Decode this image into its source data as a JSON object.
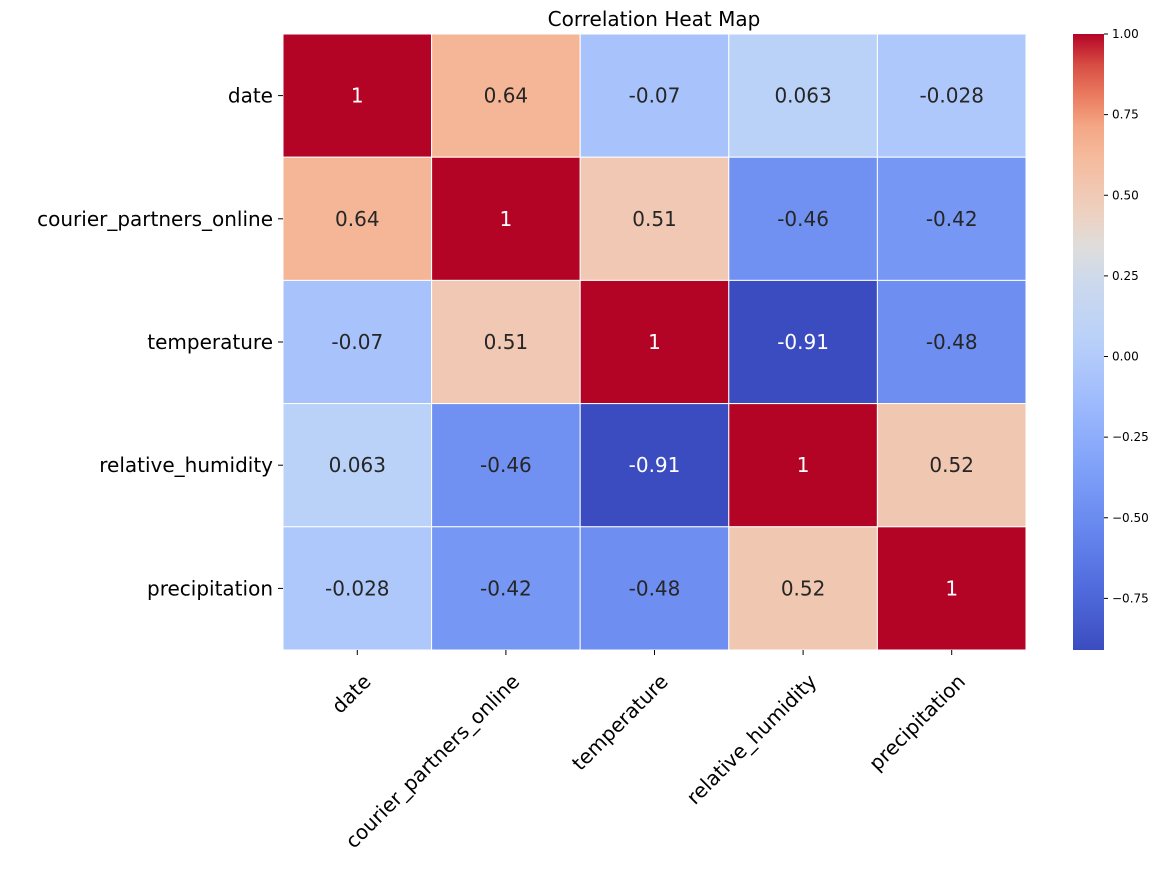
{
  "chart_data": {
    "type": "heatmap",
    "title": "Correlation Heat Map",
    "rows": [
      "date",
      "courier_partners_online",
      "temperature",
      "relative_humidity",
      "precipitation"
    ],
    "columns": [
      "date",
      "courier_partners_online",
      "temperature",
      "relative_humidity",
      "precipitation"
    ],
    "values": [
      [
        1,
        0.64,
        -0.07,
        0.063,
        -0.028
      ],
      [
        0.64,
        1,
        0.51,
        -0.46,
        -0.42
      ],
      [
        -0.07,
        0.51,
        1,
        -0.91,
        -0.48
      ],
      [
        0.063,
        -0.46,
        -0.91,
        1,
        0.52
      ],
      [
        -0.028,
        -0.42,
        -0.48,
        0.52,
        1
      ]
    ],
    "cell_labels": [
      [
        "1",
        "0.64",
        "-0.07",
        "0.063",
        "-0.028"
      ],
      [
        "0.64",
        "1",
        "0.51",
        "-0.46",
        "-0.42"
      ],
      [
        "-0.07",
        "0.51",
        "1",
        "-0.91",
        "-0.48"
      ],
      [
        "0.063",
        "-0.46",
        "-0.91",
        "1",
        "0.52"
      ],
      [
        "-0.028",
        "-0.42",
        "-0.48",
        "0.52",
        "1"
      ]
    ],
    "colormap": "coolwarm",
    "colorbar": {
      "range": [
        -0.91,
        1.0
      ],
      "ticks": [
        1.0,
        0.75,
        0.5,
        0.25,
        0.0,
        -0.25,
        -0.5,
        -0.75
      ],
      "tick_labels": [
        "1.00",
        "0.75",
        "0.50",
        "0.25",
        "0.00",
        "−0.25",
        "−0.50",
        "−0.75"
      ]
    }
  }
}
